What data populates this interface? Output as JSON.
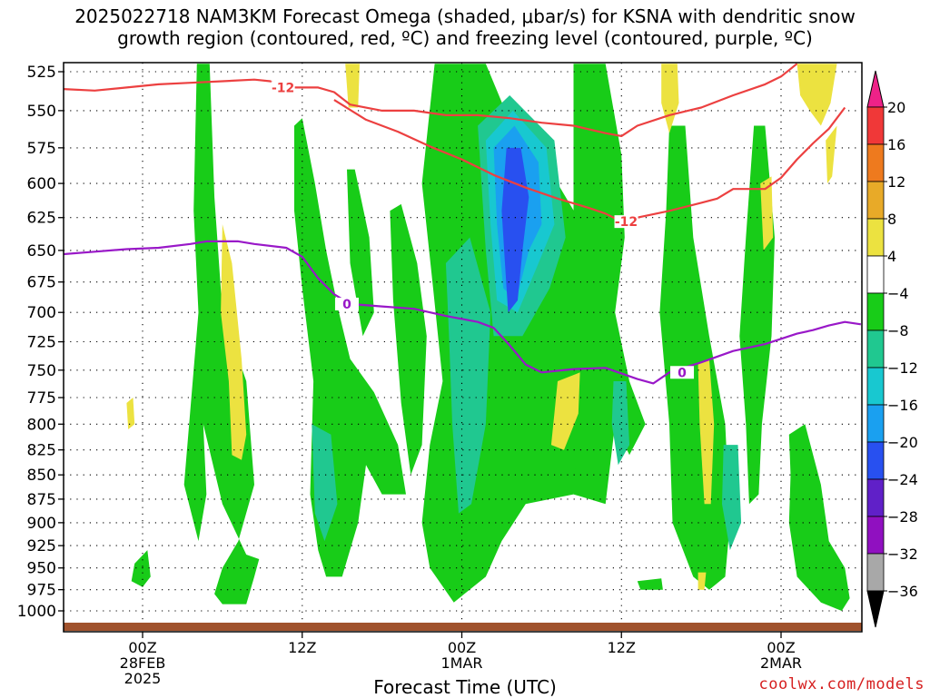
{
  "header": {
    "title_line1": "2025022718 NAM3KM Forecast Omega (shaded, μbar/s) for KSNA with dendritic snow",
    "title_line2": "growth region (contoured, red, ºC) and freezing level (contoured, purple, ºC)"
  },
  "footer": {
    "credit": "coolwx.com/models"
  },
  "colors": {
    "snow_growth": "#ec4040",
    "freezing": "#9918c8",
    "terrain": "#a0522d"
  },
  "chart_data": {
    "type": "heatmap",
    "title": "2025022718 NAM3KM Forecast Omega (shaded, μbar/s) for KSNA with dendritic snow growth region (contoured, red, ºC) and freezing level (contoured, purple, ºC)",
    "xlabel": "Forecast Time (UTC)",
    "ylabel": "",
    "x_range_hours": [
      -10,
      40
    ],
    "y_range": [
      525,
      1000
    ],
    "y_scale": "log-pressure",
    "grid": true,
    "y_ticks": [
      525,
      550,
      575,
      600,
      625,
      650,
      675,
      700,
      725,
      750,
      775,
      800,
      825,
      850,
      875,
      900,
      925,
      950,
      975,
      1000
    ],
    "x_ticks": [
      {
        "hour": 0,
        "lines": [
          "00Z",
          "28FEB",
          "2025"
        ]
      },
      {
        "hour": 10,
        "lines": [
          "12Z"
        ]
      },
      {
        "hour": 20,
        "lines": [
          "00Z",
          "1MAR"
        ]
      },
      {
        "hour": 30,
        "lines": [
          "12Z"
        ]
      },
      {
        "hour": 40,
        "lines": [
          "00Z",
          "2MAR"
        ]
      }
    ],
    "colorbar": {
      "levels": [
        20,
        16,
        12,
        8,
        4,
        -4,
        -8,
        -12,
        -16,
        -20,
        -24,
        -28,
        -32,
        -36
      ],
      "colors": [
        "#ee2288",
        "#f03838",
        "#ee7a1e",
        "#e8aa28",
        "#ece240",
        "#ffffff",
        "#18cc18",
        "#20c890",
        "#18c8d0",
        "#1aa0f0",
        "#2850f0",
        "#6020c8",
        "#9010c0",
        "#a8a8a8",
        "#000000"
      ]
    },
    "series": [
      {
        "name": "-12",
        "label_positions_hours": [
          8.8,
          30.3
        ],
        "points": [
          [
            -10,
            528
          ],
          [
            -9,
            530
          ],
          [
            -7,
            534
          ],
          [
            -5,
            536
          ],
          [
            -3,
            537
          ],
          [
            -1,
            535
          ],
          [
            1,
            533
          ],
          [
            3,
            532
          ],
          [
            5,
            531
          ],
          [
            7,
            530
          ],
          [
            8,
            531
          ],
          [
            9,
            535
          ],
          [
            11,
            535
          ],
          [
            12,
            538
          ],
          [
            13,
            546
          ],
          [
            15,
            550
          ],
          [
            17,
            550
          ],
          [
            19,
            553
          ],
          [
            21,
            553
          ],
          [
            23,
            555
          ],
          [
            25,
            558
          ],
          [
            27,
            560
          ],
          [
            29,
            565
          ],
          [
            30,
            567
          ],
          [
            31,
            560
          ],
          [
            33,
            553
          ],
          [
            35,
            548
          ],
          [
            37,
            540
          ],
          [
            39,
            533
          ],
          [
            40,
            528
          ],
          [
            41,
            520
          ]
        ]
      },
      {
        "name": "-12",
        "label_positions_hours": [
          8.8,
          30.3
        ],
        "points": [
          [
            12,
            543
          ],
          [
            14,
            556
          ],
          [
            16,
            564
          ],
          [
            18,
            574
          ],
          [
            20,
            583
          ],
          [
            22,
            594
          ],
          [
            24,
            603
          ],
          [
            26,
            611
          ],
          [
            28,
            618
          ],
          [
            29,
            622
          ],
          [
            30,
            628
          ],
          [
            31,
            625
          ],
          [
            33,
            620
          ],
          [
            35,
            614
          ],
          [
            36,
            611
          ],
          [
            37,
            604
          ],
          [
            39,
            604
          ],
          [
            40,
            596
          ],
          [
            41,
            583
          ],
          [
            42,
            572
          ],
          [
            43,
            562
          ],
          [
            44,
            548
          ]
        ]
      },
      {
        "name": "0",
        "label_positions_hours": [
          12.8,
          33.8
        ],
        "points": [
          [
            -10,
            640
          ],
          [
            -9,
            642
          ],
          [
            -8,
            645
          ],
          [
            -6,
            652
          ],
          [
            -5,
            653
          ],
          [
            -3,
            651
          ],
          [
            -1,
            649
          ],
          [
            1,
            648
          ],
          [
            3,
            645
          ],
          [
            4,
            643
          ],
          [
            6,
            643
          ],
          [
            7,
            645
          ],
          [
            9,
            648
          ],
          [
            10,
            655
          ],
          [
            11,
            672
          ],
          [
            12,
            685
          ],
          [
            13,
            693
          ],
          [
            15,
            695
          ],
          [
            17,
            697
          ],
          [
            19,
            703
          ],
          [
            21,
            708
          ],
          [
            22,
            713
          ],
          [
            23,
            728
          ],
          [
            24,
            745
          ],
          [
            25,
            752
          ],
          [
            27,
            749
          ],
          [
            29,
            748
          ],
          [
            31,
            758
          ],
          [
            32,
            762
          ],
          [
            33,
            752
          ],
          [
            35,
            743
          ],
          [
            37,
            733
          ],
          [
            39,
            727
          ],
          [
            41,
            718
          ],
          [
            42,
            715
          ],
          [
            43,
            711
          ],
          [
            44,
            708
          ],
          [
            45,
            710
          ]
        ]
      }
    ]
  }
}
